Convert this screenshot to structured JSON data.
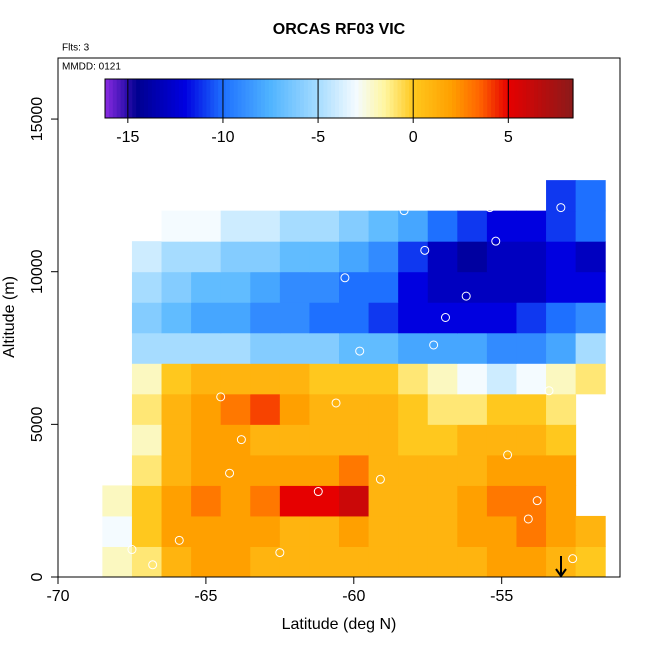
{
  "chart_data": {
    "type": "heatmap",
    "title": "ORCAS RF03 VIC",
    "annotations": [
      "Flts: 3",
      "MMDD: 0121"
    ],
    "x_label": "Latitude (deg N)",
    "y_label": "Altitude (m)",
    "xlim": [
      -70,
      -51
    ],
    "xticks": [
      -70,
      -65,
      -60,
      -55
    ],
    "ylim": [
      0,
      17000
    ],
    "yticks": [
      0,
      5000,
      10000,
      15000
    ],
    "xbins": [
      -68.5,
      -67.5,
      -66.5,
      -65.5,
      -64.5,
      -63.5,
      -62.5,
      -61.5,
      -60.5,
      -59.5,
      -58.5,
      -57.5,
      -56.5,
      -55.5,
      -54.5,
      -53.5,
      -52.5,
      -51.5
    ],
    "ybins": [
      0,
      1000,
      2000,
      3000,
      4000,
      5000,
      6000,
      7000,
      8000,
      9000,
      10000,
      11000,
      12000,
      13000
    ],
    "values": [
      [
        -2,
        -1,
        1,
        2,
        2,
        1,
        1,
        1,
        1,
        1,
        1,
        1,
        1,
        2,
        2,
        1,
        0
      ],
      [
        -3,
        0,
        2,
        2,
        2,
        2,
        1,
        1,
        2,
        1,
        1,
        1,
        2,
        2,
        3,
        2,
        1
      ],
      [
        -2,
        0,
        2,
        3,
        2,
        3,
        5,
        5,
        6,
        1,
        1,
        1,
        2,
        3,
        3,
        2,
        null
      ],
      [
        null,
        -1,
        1,
        2,
        2,
        2,
        2,
        2,
        3,
        1,
        1,
        1,
        1,
        2,
        2,
        2,
        null
      ],
      [
        null,
        -2,
        1,
        2,
        2,
        1,
        1,
        1,
        1,
        1,
        0,
        0,
        1,
        1,
        1,
        0,
        null
      ],
      [
        null,
        -1,
        1,
        2,
        3,
        4,
        2,
        1,
        1,
        1,
        0,
        -1,
        -1,
        0,
        0,
        -1,
        null
      ],
      [
        null,
        -2,
        0,
        1,
        1,
        1,
        1,
        0,
        0,
        0,
        -1,
        -2,
        -3,
        -4,
        -3,
        -2,
        -1
      ],
      [
        null,
        -5,
        -5,
        -5,
        -5,
        -6,
        -6,
        -6,
        -7,
        -7,
        -8,
        -8,
        -8,
        -9,
        -9,
        -8,
        -5
      ],
      [
        null,
        -6,
        -7,
        -8,
        -8,
        -9,
        -9,
        -10,
        -10,
        -11,
        -12,
        -12,
        -12,
        -12,
        -11,
        -10,
        -9
      ],
      [
        null,
        -5,
        -6,
        -7,
        -7,
        -8,
        -9,
        -9,
        -10,
        -10,
        -12,
        -13,
        -13,
        -13,
        -13,
        -12,
        -12
      ],
      [
        null,
        -4,
        -5,
        -5,
        -6,
        -6,
        -7,
        -7,
        -8,
        -9,
        -11,
        -13,
        -14,
        -13,
        -13,
        -12,
        -13
      ],
      [
        null,
        null,
        -3,
        -3,
        -4,
        -4,
        -5,
        -5,
        -6,
        -7,
        -8,
        -10,
        -11,
        -12,
        -12,
        -11,
        -10
      ],
      [
        null,
        null,
        null,
        null,
        null,
        null,
        null,
        null,
        null,
        null,
        null,
        null,
        null,
        null,
        null,
        -11,
        -10
      ]
    ],
    "points": {
      "x": [
        -67.5,
        -66.8,
        -65.9,
        -64.5,
        -63.8,
        -62.5,
        -61.2,
        -60.6,
        -59.8,
        -59.1,
        -58.3,
        -57.6,
        -56.9,
        -56.2,
        -55.4,
        -54.8,
        -54.1,
        -53.4,
        -53.0,
        -52.6,
        -64.2,
        -60.3,
        -57.3,
        -55.2,
        -53.8
      ],
      "y": [
        900,
        400,
        1200,
        5900,
        4500,
        800,
        2800,
        5700,
        7400,
        3200,
        12000,
        10700,
        8500,
        9200,
        12100,
        4000,
        1900,
        6100,
        12100,
        600,
        3400,
        9800,
        7600,
        11000,
        2500
      ]
    },
    "colorbar": {
      "lim": [
        -16.2,
        8.4
      ],
      "ticks": [
        -15,
        -10,
        -5,
        0,
        5
      ]
    },
    "colorscale": [
      [
        -16.2,
        "#8a2be2"
      ],
      [
        -14.5,
        "#000090"
      ],
      [
        -12,
        "#0000e0"
      ],
      [
        -10,
        "#1e70ff"
      ],
      [
        -7.5,
        "#50b4ff"
      ],
      [
        -5,
        "#a6dcff"
      ],
      [
        -3,
        "#f4fbff"
      ],
      [
        -1.5,
        "#fff6a0"
      ],
      [
        0,
        "#ffc81e"
      ],
      [
        2,
        "#ffa000"
      ],
      [
        3.5,
        "#ff6400"
      ],
      [
        5,
        "#e60000"
      ],
      [
        8.4,
        "#8b1a1a"
      ]
    ]
  }
}
